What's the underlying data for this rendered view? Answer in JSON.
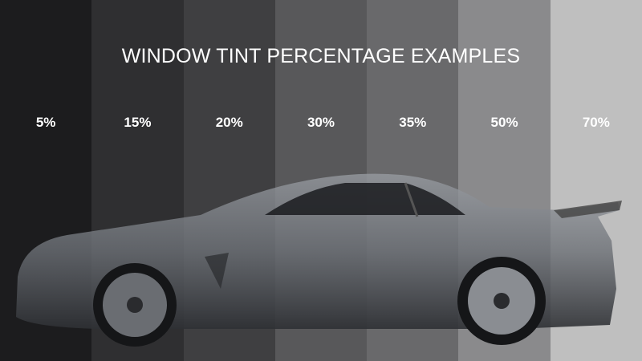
{
  "title": "WINDOW TINT PERCENTAGE EXAMPLES",
  "tints": [
    {
      "label": "5%",
      "color": "#1c1c1e"
    },
    {
      "label": "15%",
      "color": "#2f2f31"
    },
    {
      "label": "20%",
      "color": "#3f3f41"
    },
    {
      "label": "30%",
      "color": "#58585a"
    },
    {
      "label": "35%",
      "color": "#69696b"
    },
    {
      "label": "50%",
      "color": "#8a8a8c"
    },
    {
      "label": "70%",
      "color": "#bfbfbf"
    }
  ]
}
